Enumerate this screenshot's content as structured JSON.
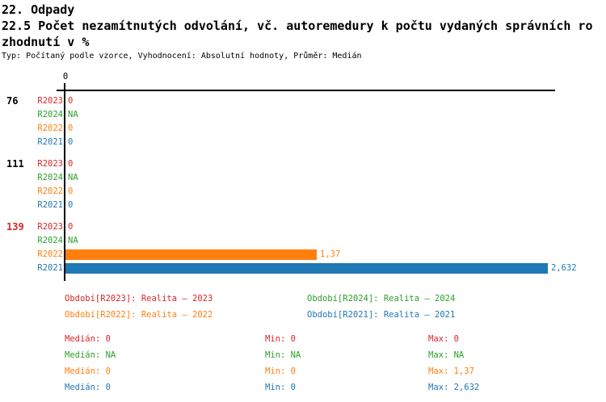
{
  "header": {
    "category": "22. Odpady",
    "title_line1": "22.5 Počet nezamítnutých odvolání, vč. autoremedury k počtu vydaných správních ro",
    "title_line2": "zhodnutí v %",
    "meta": "Typ: Počítaný podle vzorce, Vyhodnocení: Absolutní hodnoty, Průměr: Medián"
  },
  "colors": {
    "R2023": "#d62728",
    "R2024": "#2ca02c",
    "R2022": "#ff7f0e",
    "R2021": "#1f77b4",
    "axis": "#000000",
    "highlight_group_id": "#d62728"
  },
  "chart_data": {
    "type": "bar",
    "orientation": "horizontal",
    "title": "22.5 Počet nezamítnutých odvolání, vč. autoremedury k počtu vydaných správních rozhodnutí v %",
    "axis": {
      "origin_tick_label": "0",
      "xlim": [
        0,
        2.65
      ],
      "grid": false
    },
    "series_order": [
      "R2023",
      "R2024",
      "R2022",
      "R2021"
    ],
    "legend_position": "bottom",
    "groups": [
      {
        "id": "76",
        "rows": [
          {
            "series": "R2023",
            "label": "0",
            "value": 0
          },
          {
            "series": "R2024",
            "label": "NA",
            "value": null
          },
          {
            "series": "R2022",
            "label": "0",
            "value": 0
          },
          {
            "series": "R2021",
            "label": "0",
            "value": 0
          }
        ]
      },
      {
        "id": "111",
        "rows": [
          {
            "series": "R2023",
            "label": "0",
            "value": 0
          },
          {
            "series": "R2024",
            "label": "NA",
            "value": null
          },
          {
            "series": "R2022",
            "label": "0",
            "value": 0
          },
          {
            "series": "R2021",
            "label": "0",
            "value": 0
          }
        ]
      },
      {
        "id": "139",
        "rows": [
          {
            "series": "R2023",
            "label": "0",
            "value": 0
          },
          {
            "series": "R2024",
            "label": "NA",
            "value": null
          },
          {
            "series": "R2022",
            "label": "1,37",
            "value": 1.37
          },
          {
            "series": "R2021",
            "label": "2,632",
            "value": 2.632
          }
        ]
      }
    ]
  },
  "legend": [
    {
      "series": "R2023",
      "label": "Období[R2023]: Realita – 2023"
    },
    {
      "series": "R2024",
      "label": "Období[R2024]: Realita – 2024"
    },
    {
      "series": "R2022",
      "label": "Období[R2022]: Realita – 2022"
    },
    {
      "series": "R2021",
      "label": "Období[R2021]: Realita – 2021"
    }
  ],
  "stats": [
    {
      "series": "R2023",
      "median": "Medián: 0",
      "min": "Min: 0",
      "max": "Max: 0"
    },
    {
      "series": "R2024",
      "median": "Medián: NA",
      "min": "Min: NA",
      "max": "Max: NA"
    },
    {
      "series": "R2022",
      "median": "Medián: 0",
      "min": "Min: 0",
      "max": "Max: 1,37"
    },
    {
      "series": "R2021",
      "median": "Medián: 0",
      "min": "Min: 0",
      "max": "Max: 2,632"
    }
  ]
}
